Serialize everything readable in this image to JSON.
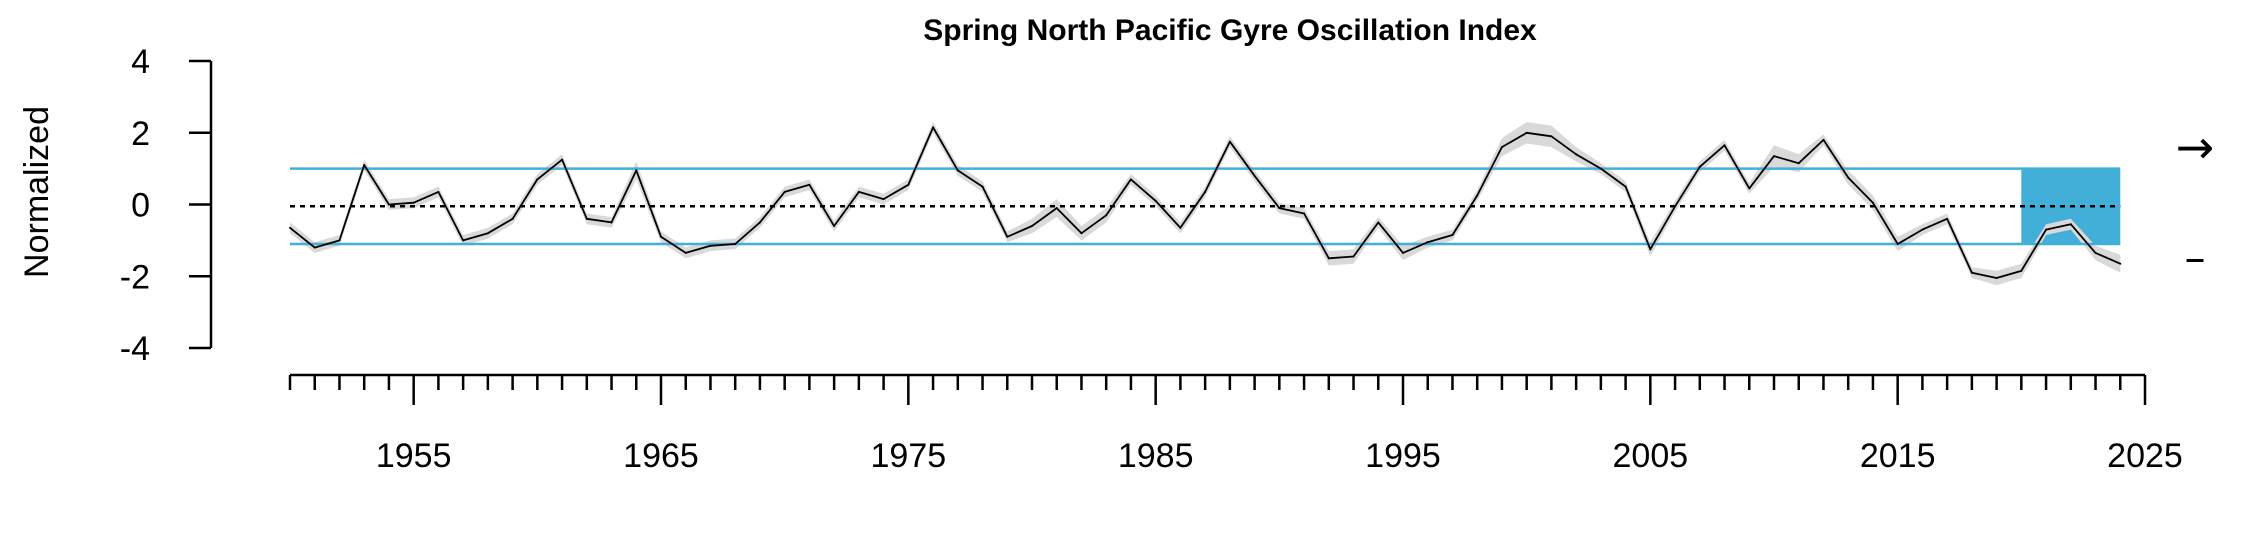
{
  "chart_data": {
    "type": "line",
    "title": "Spring North Pacific Gyre Oscillation Index",
    "ylabel": "Normalized",
    "xlabel": "",
    "ylim": [
      -4,
      4
    ],
    "xlim": [
      1950,
      2025
    ],
    "y_ticks": [
      4,
      2,
      0,
      -2,
      -4
    ],
    "y_tick_labels": [
      "4",
      "2",
      "0",
      "-2",
      "-4"
    ],
    "x_tick_labels": [
      "1955",
      "1965",
      "1975",
      "1985",
      "1995",
      "2005",
      "2015",
      "2025"
    ],
    "x_labeled_ticks": [
      1955,
      1965,
      1975,
      1985,
      1995,
      2005,
      2015,
      2025
    ],
    "mean": -0.05,
    "sd_upper": 1.0,
    "sd_lower": -1.1,
    "recent_window": [
      2020,
      2024
    ],
    "trend_indicator": "→",
    "mean_indicator": "–",
    "grid": false,
    "legend": "none",
    "colors": {
      "line": "#000000",
      "uncertainty": "#d9d9d9",
      "threshold": "#42afd8",
      "recent_shade": "#42afd8"
    },
    "series": [
      {
        "x": [
          1950,
          1951,
          1952,
          1953,
          1954,
          1955,
          1956,
          1957,
          1958,
          1959,
          1960,
          1961,
          1962,
          1963,
          1964,
          1965,
          1966,
          1967,
          1968,
          1969,
          1970,
          1971,
          1972,
          1973,
          1974,
          1975,
          1976,
          1977,
          1978,
          1979,
          1980,
          1981,
          1982,
          1983,
          1984,
          1985,
          1986,
          1987,
          1988,
          1989,
          1990,
          1991,
          1992,
          1993,
          1994,
          1995,
          1996,
          1997,
          1998,
          1999,
          2000,
          2001,
          2002,
          2003,
          2004,
          2005,
          2006,
          2007,
          2008,
          2009,
          2010,
          2011,
          2012,
          2013,
          2014,
          2015,
          2016,
          2017,
          2018,
          2019,
          2020,
          2021,
          2022,
          2023,
          2024
        ],
        "values": [
          -0.65,
          -1.2,
          -1.0,
          1.1,
          0.0,
          0.05,
          0.35,
          -1.0,
          -0.8,
          -0.4,
          0.7,
          1.25,
          -0.4,
          -0.5,
          0.95,
          -0.9,
          -1.35,
          -1.15,
          -1.1,
          -0.5,
          0.35,
          0.55,
          -0.6,
          0.35,
          0.15,
          0.55,
          2.15,
          0.95,
          0.5,
          -0.9,
          -0.6,
          -0.1,
          -0.8,
          -0.3,
          0.7,
          0.1,
          -0.65,
          0.35,
          1.75,
          0.8,
          -0.1,
          -0.25,
          -1.5,
          -1.45,
          -0.5,
          -1.35,
          -1.05,
          -0.85,
          0.25,
          1.6,
          2.0,
          1.9,
          1.4,
          1.0,
          0.5,
          -1.25,
          -0.05,
          1.05,
          1.65,
          0.45,
          1.35,
          1.15,
          1.8,
          0.75,
          0.05,
          -1.1,
          -0.7,
          -0.4,
          -1.9,
          -2.05,
          -1.85,
          -0.7,
          -0.55,
          -1.35,
          -1.65
        ],
        "uncertainty": [
          0.15,
          0.15,
          0.15,
          0.15,
          0.15,
          0.15,
          0.15,
          0.15,
          0.15,
          0.15,
          0.15,
          0.15,
          0.15,
          0.15,
          0.25,
          0.15,
          0.15,
          0.15,
          0.15,
          0.15,
          0.15,
          0.15,
          0.15,
          0.15,
          0.15,
          0.15,
          0.15,
          0.15,
          0.15,
          0.15,
          0.2,
          0.25,
          0.2,
          0.2,
          0.15,
          0.15,
          0.15,
          0.15,
          0.15,
          0.15,
          0.15,
          0.15,
          0.2,
          0.2,
          0.15,
          0.2,
          0.15,
          0.15,
          0.15,
          0.25,
          0.3,
          0.3,
          0.2,
          0.15,
          0.15,
          0.2,
          0.15,
          0.15,
          0.15,
          0.15,
          0.3,
          0.25,
          0.15,
          0.2,
          0.2,
          0.2,
          0.15,
          0.15,
          0.15,
          0.2,
          0.2,
          0.15,
          0.15,
          0.2,
          0.25
        ]
      }
    ]
  }
}
